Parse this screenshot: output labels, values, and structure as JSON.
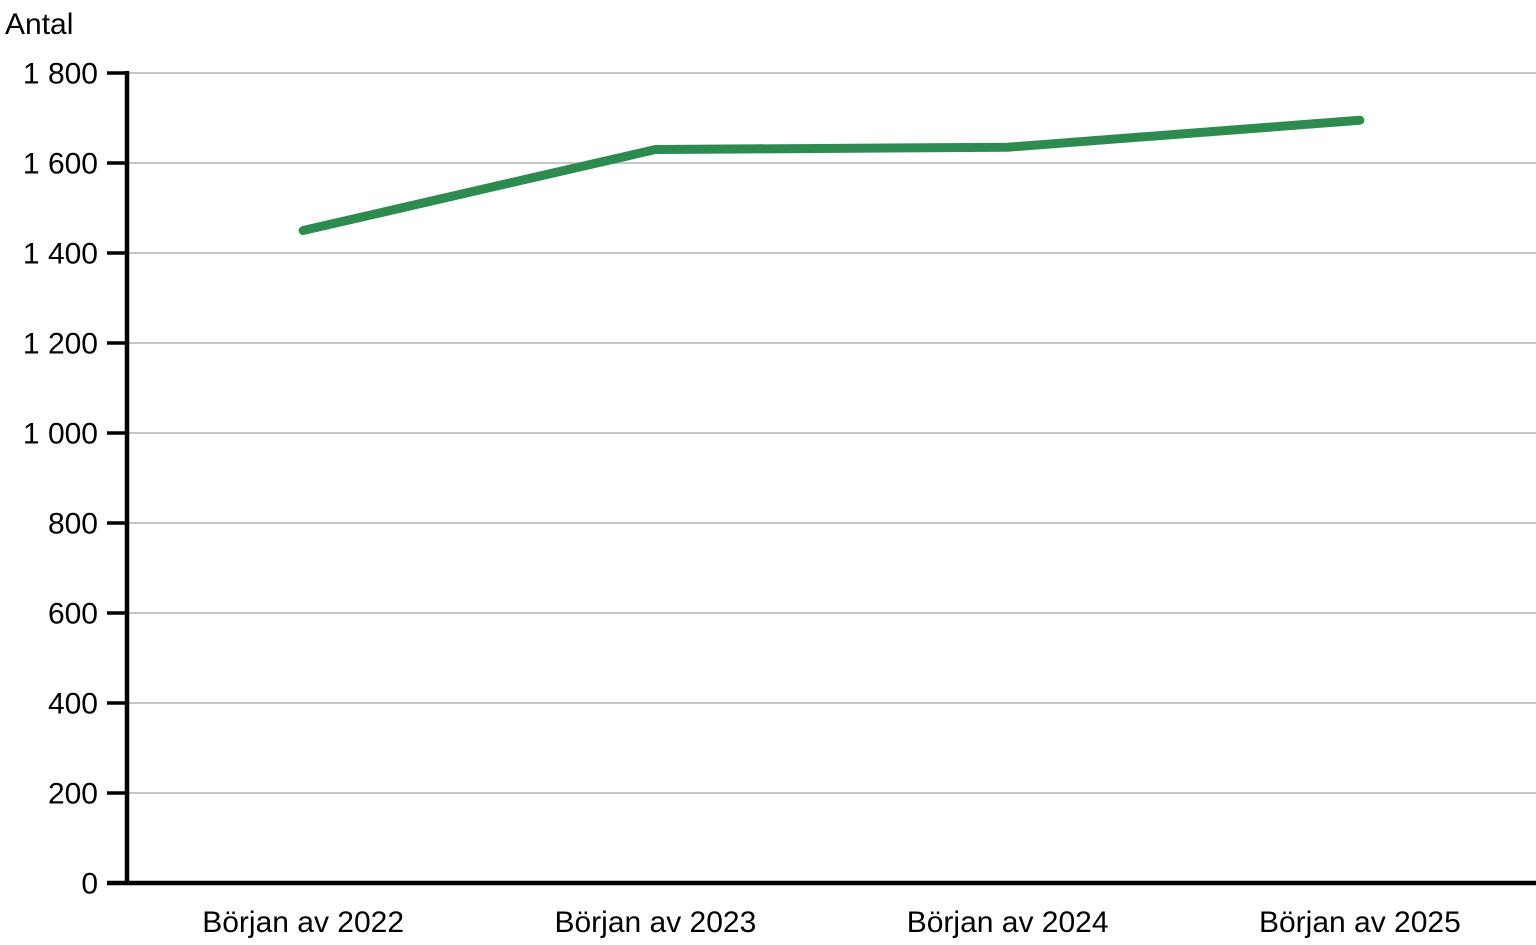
{
  "chart_data": {
    "type": "line",
    "title": "",
    "ylabel": "Antal",
    "xlabel": "",
    "categories": [
      "Början av 2022",
      "Början av 2023",
      "Början av 2024",
      "Början av 2025"
    ],
    "series": [
      {
        "name": "Antal",
        "values": [
          1450,
          1630,
          1635,
          1695
        ]
      }
    ],
    "ylim": [
      0,
      1800
    ],
    "ytick_step": 200,
    "ytick_labels": [
      "0",
      "200",
      "400",
      "600",
      "800",
      "1 000",
      "1 200",
      "1 400",
      "1 600",
      "1 800"
    ],
    "grid": true,
    "legend": "none"
  },
  "colors": {
    "line": "#2e8b50",
    "grid": "#c6c6c6",
    "axis": "#000000",
    "text": "#000000",
    "background": "#ffffff"
  }
}
